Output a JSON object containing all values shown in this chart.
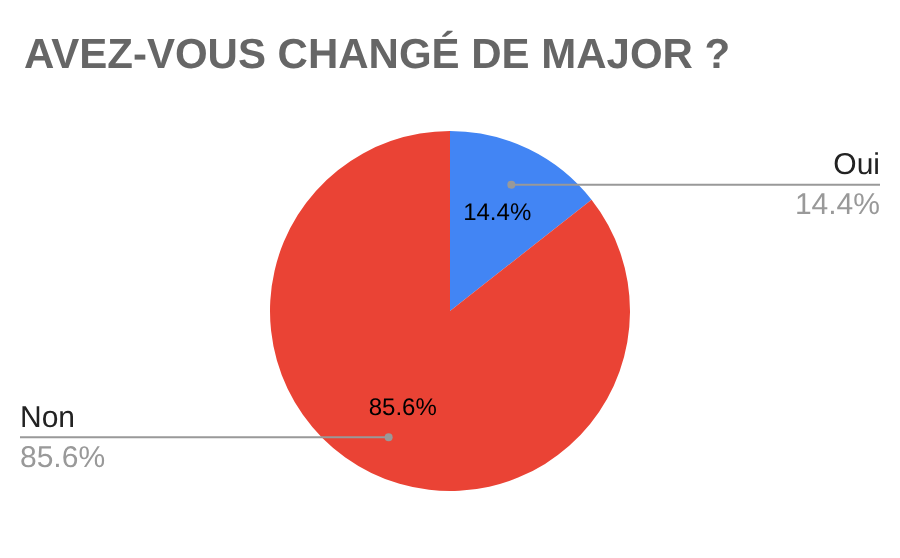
{
  "chart_data": {
    "type": "pie",
    "title": "AVEZ-VOUS CHANGÉ DE MAJOR ?",
    "categories": [
      "Oui",
      "Non"
    ],
    "values": [
      14.4,
      85.6
    ],
    "colors": [
      "#4285f4",
      "#ea4335"
    ],
    "value_labels": [
      "14.4%",
      "85.6%"
    ]
  }
}
